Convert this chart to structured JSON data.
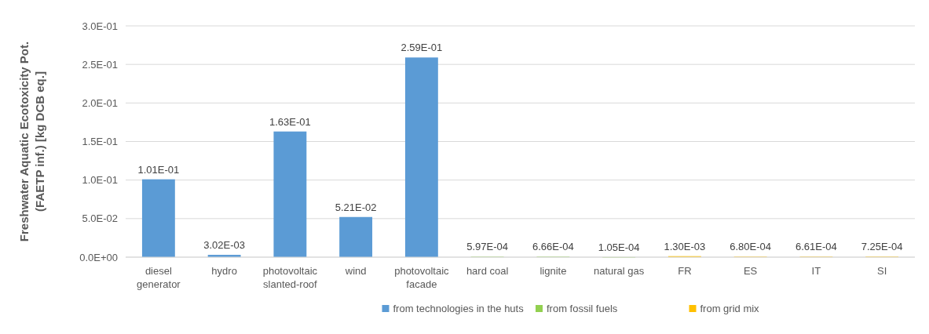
{
  "chart_data": {
    "type": "bar",
    "stacked": true,
    "ylabel": "Freshwater Aquatic Ecotoxicity Pot. (FAETP inf.) [kg DCB eq.]",
    "categories": [
      "diesel generator",
      "hydro",
      "photovoltaic slanted-roof",
      "wind",
      "photovoltaic facade",
      "hard coal",
      "lignite",
      "natural gas",
      "FR",
      "ES",
      "IT",
      "SI"
    ],
    "series": [
      {
        "name": "from technologies in the huts",
        "color": "#5b9bd5",
        "values": [
          0.101,
          0.00302,
          0.163,
          0.0521,
          0.259,
          null,
          null,
          null,
          null,
          null,
          null,
          null
        ],
        "value_labels": [
          "1.01E-01",
          "3.02E-03",
          "1.63E-01",
          "5.21E-02",
          "2.59E-01",
          null,
          null,
          null,
          null,
          null,
          null,
          null
        ]
      },
      {
        "name": "from fossil fuels",
        "color": "#92d050",
        "values": [
          null,
          null,
          null,
          null,
          null,
          0.000597,
          0.000666,
          0.000105,
          null,
          null,
          null,
          null
        ],
        "value_labels": [
          null,
          null,
          null,
          null,
          null,
          "5.97E-04",
          "6.66E-04",
          "1.05E-04",
          null,
          null,
          null,
          null
        ]
      },
      {
        "name": "from grid mix",
        "color": "#ffc000",
        "values": [
          null,
          null,
          null,
          null,
          null,
          null,
          null,
          null,
          0.0013,
          0.00068,
          0.000661,
          0.000725
        ],
        "value_labels": [
          null,
          null,
          null,
          null,
          null,
          null,
          null,
          null,
          "1.30E-03",
          "6.80E-04",
          "6.61E-04",
          "7.25E-04"
        ]
      }
    ],
    "ylim": [
      0,
      0.3
    ],
    "yticks": [
      {
        "value": 0,
        "label": "0.0E+00"
      },
      {
        "value": 0.05,
        "label": "5.0E-02"
      },
      {
        "value": 0.1,
        "label": "1.0E-01"
      },
      {
        "value": 0.15,
        "label": "1.5E-01"
      },
      {
        "value": 0.2,
        "label": "2.0E-01"
      },
      {
        "value": 0.25,
        "label": "2.5E-01"
      },
      {
        "value": 0.3,
        "label": "3.0E-01"
      }
    ],
    "grid": "y",
    "legend": "bottom"
  }
}
